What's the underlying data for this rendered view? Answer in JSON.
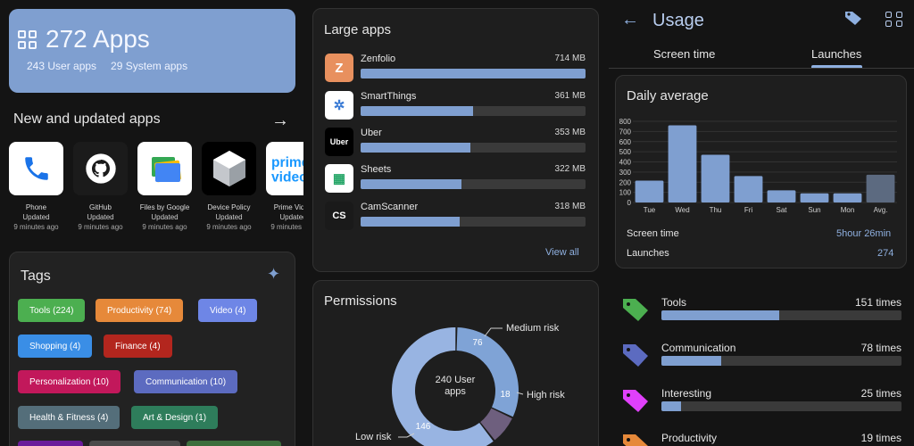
{
  "summary": {
    "count_title": "272 Apps",
    "user_apps": "243 User apps",
    "system_apps": "29 System apps"
  },
  "new_apps": {
    "title": "New and updated apps",
    "items": [
      {
        "name": "Phone",
        "state": "Updated",
        "time": "9 minutes ago"
      },
      {
        "name": "GitHub",
        "state": "Updated",
        "time": "9 minutes ago"
      },
      {
        "name": "Files by Google",
        "state": "Updated",
        "time": "9 minutes ago"
      },
      {
        "name": "Device Policy",
        "state": "Updated",
        "time": "9 minutes ago"
      },
      {
        "name": "Prime Video",
        "state": "Updated",
        "time": "9 minutes ago"
      }
    ]
  },
  "tags": {
    "title": "Tags",
    "items": [
      {
        "label": "Tools (224)",
        "color": "#4caf50"
      },
      {
        "label": "Productivity (74)",
        "color": "#e6893a"
      },
      {
        "label": "Video (4)",
        "color": "#6e86e6"
      },
      {
        "label": "Shopping (4)",
        "color": "#3a8ee6"
      },
      {
        "label": "Finance (4)",
        "color": "#b3261e"
      },
      {
        "label": "Personalization (10)",
        "color": "#c2185b"
      },
      {
        "label": "Communication (10)",
        "color": "#5c6bc0"
      },
      {
        "label": "Health & Fitness (4)",
        "color": "#546e7a"
      },
      {
        "label": "Art & Design (1)",
        "color": "#2e7d5b"
      }
    ]
  },
  "large_apps": {
    "title": "Large apps",
    "view_all": "View all",
    "items": [
      {
        "name": "Zenfolio",
        "size": "714 MB",
        "fraction": 1.0,
        "icon_text": "Z",
        "icon_bg": "#e8905e",
        "icon_fg": "#ffffff"
      },
      {
        "name": "SmartThings",
        "size": "361 MB",
        "fraction": 0.5,
        "icon_text": "✲",
        "icon_bg": "#ffffff",
        "icon_fg": "#3a7bd5"
      },
      {
        "name": "Uber",
        "size": "353 MB",
        "fraction": 0.49,
        "icon_text": "Uber",
        "icon_bg": "#000000",
        "icon_fg": "#ffffff"
      },
      {
        "name": "Sheets",
        "size": "322 MB",
        "fraction": 0.45,
        "icon_text": "▦",
        "icon_bg": "#ffffff",
        "icon_fg": "#23a566"
      },
      {
        "name": "CamScanner",
        "size": "318 MB",
        "fraction": 0.44,
        "icon_text": "CS",
        "icon_bg": "#1a1a1a",
        "icon_fg": "#ffffff"
      }
    ]
  },
  "permissions": {
    "title": "Permissions",
    "center_line1": "240 User",
    "center_line2": "apps",
    "segments": [
      {
        "label": "Medium risk",
        "value": 76,
        "color": "#7fa3d6"
      },
      {
        "label": "High risk",
        "value": 18,
        "color": "#6e5f7e"
      },
      {
        "label": "Low risk",
        "value": 146,
        "color": "#98b4e2"
      }
    ]
  },
  "usage": {
    "title": "Usage",
    "tabs": [
      "Screen time",
      "Launches"
    ],
    "active_tab": 1,
    "daily_title": "Daily average",
    "screen_time_label": "Screen time",
    "screen_time_value": "5hour 26min",
    "launches_label": "Launches",
    "launches_value": "274"
  },
  "chart_data": {
    "type": "bar",
    "categories": [
      "Tue",
      "Wed",
      "Thu",
      "Fri",
      "Sat",
      "Sun",
      "Mon",
      "Avg."
    ],
    "values": [
      215,
      760,
      470,
      260,
      120,
      90,
      90,
      274
    ],
    "ylim": [
      0,
      800
    ],
    "yticks": [
      0,
      100,
      200,
      300,
      400,
      500,
      600,
      700,
      800
    ],
    "grid": true,
    "bar_color": "#7f9fd0",
    "avg_color": "#5c6a80"
  },
  "categories_usage": [
    {
      "name": "Tools",
      "count": "151 times",
      "fraction": 0.49,
      "color": "#4caf50"
    },
    {
      "name": "Communication",
      "count": "78 times",
      "fraction": 0.25,
      "color": "#5c6bc0"
    },
    {
      "name": "Interesting",
      "count": "25 times",
      "fraction": 0.08,
      "color": "#e040fb"
    },
    {
      "name": "Productivity",
      "count": "19 times",
      "fraction": 0.06,
      "color": "#e6893a"
    }
  ]
}
